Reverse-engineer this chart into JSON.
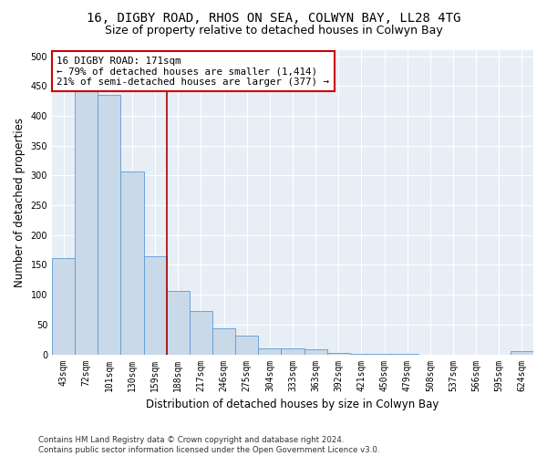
{
  "title_line1": "16, DIGBY ROAD, RHOS ON SEA, COLWYN BAY, LL28 4TG",
  "title_line2": "Size of property relative to detached houses in Colwyn Bay",
  "xlabel": "Distribution of detached houses by size in Colwyn Bay",
  "ylabel": "Number of detached properties",
  "categories": [
    "43sqm",
    "72sqm",
    "101sqm",
    "130sqm",
    "159sqm",
    "188sqm",
    "217sqm",
    "246sqm",
    "275sqm",
    "304sqm",
    "333sqm",
    "363sqm",
    "392sqm",
    "421sqm",
    "450sqm",
    "479sqm",
    "508sqm",
    "537sqm",
    "566sqm",
    "595sqm",
    "624sqm"
  ],
  "values": [
    161,
    449,
    435,
    307,
    164,
    107,
    72,
    44,
    32,
    10,
    10,
    8,
    2,
    1,
    1,
    1,
    0,
    0,
    0,
    0,
    5
  ],
  "bar_color": "#c9d9e8",
  "bar_edge_color": "#5b9bd5",
  "vline_color": "#aa0000",
  "annotation_text": "16 DIGBY ROAD: 171sqm\n← 79% of detached houses are smaller (1,414)\n21% of semi-detached houses are larger (377) →",
  "annotation_box_color": "#ffffff",
  "annotation_box_edge_color": "#cc0000",
  "ylim": [
    0,
    510
  ],
  "yticks": [
    0,
    50,
    100,
    150,
    200,
    250,
    300,
    350,
    400,
    450,
    500
  ],
  "background_color": "#e8eef5",
  "footer_text": "Contains HM Land Registry data © Crown copyright and database right 2024.\nContains public sector information licensed under the Open Government Licence v3.0.",
  "title_fontsize": 10,
  "subtitle_fontsize": 9,
  "tick_fontsize": 7,
  "axis_label_fontsize": 8.5,
  "vline_pos": 4.5
}
